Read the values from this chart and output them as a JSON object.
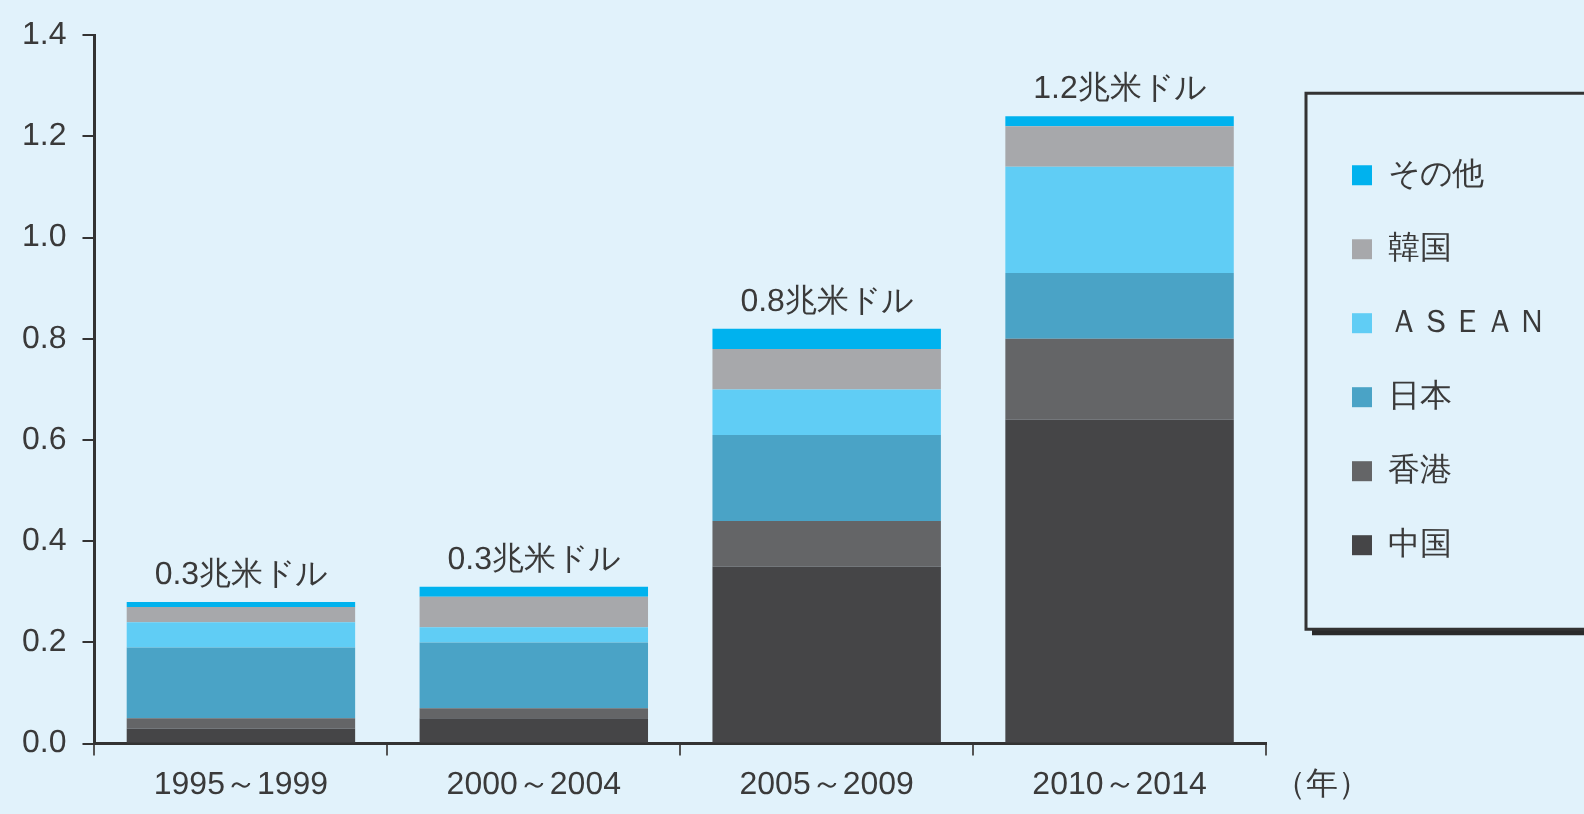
{
  "chart_data": {
    "type": "bar",
    "stacked": true,
    "categories": [
      "1995～1999",
      "2000～2004",
      "2005～2009",
      "2010～2014"
    ],
    "xlabel": "（年）",
    "series": [
      {
        "name": "中国",
        "color": "#454547",
        "values": [
          0.03,
          0.05,
          0.35,
          0.64
        ]
      },
      {
        "name": "香港",
        "color": "#646567",
        "values": [
          0.02,
          0.02,
          0.09,
          0.16
        ]
      },
      {
        "name": "日本",
        "color": "#4aa3c6",
        "values": [
          0.14,
          0.13,
          0.17,
          0.13
        ]
      },
      {
        "name": "ＡＳＥＡＮ",
        "color": "#60cdf5",
        "values": [
          0.05,
          0.03,
          0.09,
          0.21
        ]
      },
      {
        "name": "韓国",
        "color": "#a7a8ab",
        "values": [
          0.03,
          0.06,
          0.08,
          0.08
        ]
      },
      {
        "name": "その他",
        "color": "#00b2ee",
        "values": [
          0.01,
          0.02,
          0.04,
          0.02
        ]
      }
    ],
    "ylim": [
      0,
      1.4
    ],
    "yticks": [
      {
        "value": 0,
        "label": "0.0"
      },
      0.2,
      0.4,
      0.6,
      0.8,
      {
        "value": 1,
        "label": "1.0"
      },
      1.2,
      1.4
    ],
    "totals": [
      "0.3兆米ドル",
      "0.3兆米ドル",
      "0.8兆米ドル",
      "1.2兆米ドル"
    ],
    "legend": "right",
    "grid": false
  }
}
